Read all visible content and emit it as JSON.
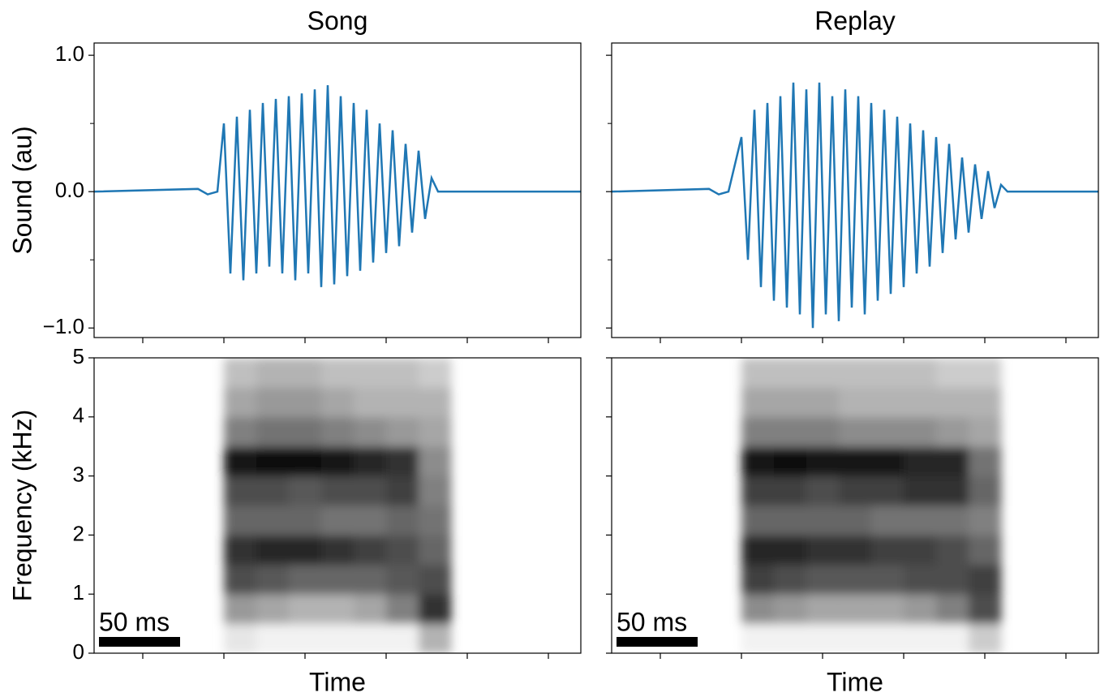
{
  "chart_data": [
    {
      "type": "line",
      "title": "Song",
      "ylabel": "Sound (au)",
      "color": "#1f77b4",
      "x": [
        0,
        64,
        70,
        76,
        80,
        84,
        88,
        92,
        96,
        100,
        104,
        108,
        112,
        116,
        120,
        124,
        128,
        132,
        136,
        140,
        144,
        148,
        152,
        156,
        160,
        164,
        168,
        172,
        176,
        180,
        184,
        188,
        192,
        196,
        200,
        204,
        208,
        212,
        300
      ],
      "values": [
        0,
        0.02,
        -0.02,
        0,
        0.5,
        -0.6,
        0.55,
        -0.65,
        0.6,
        -0.6,
        0.65,
        -0.55,
        0.68,
        -0.6,
        0.7,
        -0.65,
        0.72,
        -0.6,
        0.75,
        -0.7,
        0.78,
        -0.68,
        0.7,
        -0.62,
        0.65,
        -0.58,
        0.6,
        -0.52,
        0.5,
        -0.45,
        0.45,
        -0.4,
        0.35,
        -0.3,
        0.3,
        -0.2,
        0.1,
        0,
        0
      ],
      "xlim": [
        0,
        300
      ],
      "xticks": [
        30,
        80,
        130,
        180,
        230,
        280
      ],
      "tick_labels": true,
      "ylim": [
        -1.07,
        1.09
      ],
      "yticks": [
        {
          "value": -1,
          "label": "−1.0"
        },
        {
          "value": 0,
          "label": "0.0"
        },
        {
          "value": 1,
          "label": "1.0"
        }
      ],
      "yminor": [
        -0.5,
        0.5
      ]
    },
    {
      "type": "line",
      "title": "Replay",
      "color": "#1f77b4",
      "x": [
        0,
        60,
        66,
        72,
        80,
        84,
        88,
        92,
        96,
        100,
        104,
        108,
        112,
        116,
        120,
        124,
        128,
        132,
        136,
        140,
        144,
        148,
        152,
        156,
        160,
        164,
        168,
        172,
        176,
        180,
        184,
        188,
        192,
        196,
        200,
        204,
        208,
        212,
        216,
        220,
        224,
        228,
        232,
        236,
        240,
        244,
        300
      ],
      "values": [
        0,
        0.02,
        -0.02,
        0,
        0.4,
        -0.5,
        0.6,
        -0.7,
        0.65,
        -0.8,
        0.7,
        -0.85,
        0.8,
        -0.9,
        0.75,
        -1.0,
        0.8,
        -0.9,
        0.7,
        -0.95,
        0.75,
        -0.85,
        0.7,
        -0.9,
        0.65,
        -0.8,
        0.6,
        -0.75,
        0.55,
        -0.7,
        0.5,
        -0.6,
        0.45,
        -0.55,
        0.4,
        -0.45,
        0.35,
        -0.35,
        0.25,
        -0.3,
        0.2,
        -0.2,
        0.15,
        -0.12,
        0.05,
        0,
        0
      ],
      "xlim": [
        0,
        300
      ],
      "xticks": [
        30,
        80,
        130,
        180,
        230,
        280
      ],
      "tick_labels": false,
      "ylim": [
        -1.07,
        1.09
      ],
      "yticks": [
        -1,
        0,
        1
      ],
      "yminor": [
        -0.5,
        0.5
      ]
    },
    {
      "type": "heatmap",
      "ylabel": "Frequency (kHz)",
      "xlabel": "Time",
      "x": [
        80,
        100,
        120,
        140,
        160,
        180,
        200,
        220
      ],
      "y": [
        0,
        0.5,
        1,
        1.5,
        2,
        2.5,
        3,
        3.5,
        4,
        4.5,
        5
      ],
      "z": [
        [
          0.1,
          0.05,
          0.05,
          0.05,
          0.05,
          0.05,
          0.3
        ],
        [
          0.4,
          0.35,
          0.3,
          0.3,
          0.35,
          0.5,
          0.8
        ],
        [
          0.7,
          0.65,
          0.6,
          0.6,
          0.6,
          0.65,
          0.7
        ],
        [
          0.8,
          0.85,
          0.85,
          0.8,
          0.75,
          0.7,
          0.6
        ],
        [
          0.6,
          0.6,
          0.6,
          0.55,
          0.55,
          0.6,
          0.55
        ],
        [
          0.7,
          0.7,
          0.65,
          0.7,
          0.7,
          0.75,
          0.5
        ],
        [
          0.9,
          0.95,
          0.95,
          0.9,
          0.85,
          0.8,
          0.45
        ],
        [
          0.5,
          0.55,
          0.55,
          0.5,
          0.45,
          0.4,
          0.35
        ],
        [
          0.35,
          0.4,
          0.4,
          0.35,
          0.3,
          0.3,
          0.3
        ],
        [
          0.25,
          0.3,
          0.3,
          0.25,
          0.25,
          0.25,
          0.2
        ]
      ],
      "xlim": [
        0,
        300
      ],
      "xticks": [
        30,
        80,
        130,
        180,
        230,
        280
      ],
      "tick_labels": true,
      "ylim": [
        0,
        5
      ],
      "yticks": [
        0,
        1,
        2,
        3,
        4,
        5
      ],
      "scale_bar": {
        "value": 50,
        "label": "50 ms"
      }
    },
    {
      "type": "heatmap",
      "xlabel": "Time",
      "x": [
        80,
        100,
        120,
        140,
        160,
        180,
        200,
        220,
        240
      ],
      "y": [
        0,
        0.5,
        1,
        1.5,
        2,
        2.5,
        3,
        3.5,
        4,
        4.5,
        5
      ],
      "z": [
        [
          0.05,
          0.05,
          0.05,
          0.05,
          0.05,
          0.05,
          0.05,
          0.2
        ],
        [
          0.45,
          0.4,
          0.35,
          0.35,
          0.35,
          0.4,
          0.5,
          0.7
        ],
        [
          0.75,
          0.7,
          0.65,
          0.65,
          0.65,
          0.7,
          0.7,
          0.75
        ],
        [
          0.85,
          0.85,
          0.8,
          0.8,
          0.75,
          0.75,
          0.7,
          0.6
        ],
        [
          0.6,
          0.6,
          0.6,
          0.6,
          0.55,
          0.55,
          0.55,
          0.5
        ],
        [
          0.75,
          0.75,
          0.7,
          0.75,
          0.75,
          0.8,
          0.8,
          0.6
        ],
        [
          0.9,
          0.95,
          0.9,
          0.9,
          0.9,
          0.85,
          0.85,
          0.55
        ],
        [
          0.5,
          0.5,
          0.5,
          0.45,
          0.45,
          0.45,
          0.4,
          0.35
        ],
        [
          0.35,
          0.35,
          0.35,
          0.3,
          0.3,
          0.3,
          0.3,
          0.3
        ],
        [
          0.25,
          0.25,
          0.25,
          0.25,
          0.25,
          0.25,
          0.2,
          0.2
        ]
      ],
      "xlim": [
        0,
        300
      ],
      "xticks": [
        30,
        80,
        130,
        180,
        230,
        280
      ],
      "tick_labels": false,
      "ylim": [
        0,
        5
      ],
      "yticks": [
        0,
        1,
        2,
        3,
        4,
        5
      ],
      "scale_bar": {
        "value": 50,
        "label": "50 ms"
      }
    }
  ]
}
